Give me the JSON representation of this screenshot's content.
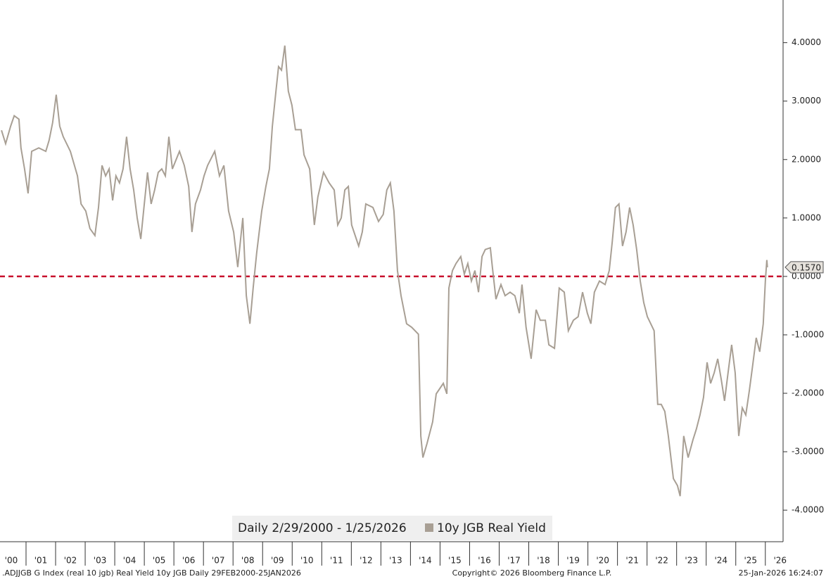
{
  "chart_data": {
    "type": "line",
    "x": [
      2000.17,
      2000.31,
      2000.48,
      2000.6,
      2000.76,
      2000.83,
      2000.95,
      2001.07,
      2001.19,
      2001.43,
      2001.67,
      2001.78,
      2001.9,
      2002.02,
      2002.14,
      2002.26,
      2002.5,
      2002.74,
      2002.86,
      2003.02,
      2003.16,
      2003.33,
      2003.45,
      2003.57,
      2003.69,
      2003.81,
      2003.93,
      2004.04,
      2004.16,
      2004.28,
      2004.4,
      2004.52,
      2004.64,
      2004.76,
      2004.88,
      2005.0,
      2005.11,
      2005.23,
      2005.35,
      2005.47,
      2005.59,
      2005.71,
      2005.83,
      2005.95,
      2006.19,
      2006.35,
      2006.5,
      2006.61,
      2006.73,
      2006.9,
      2007.02,
      2007.14,
      2007.38,
      2007.54,
      2007.69,
      2007.85,
      2008.02,
      2008.16,
      2008.33,
      2008.45,
      2008.57,
      2008.68,
      2008.8,
      2008.97,
      2009.11,
      2009.23,
      2009.33,
      2009.45,
      2009.54,
      2009.64,
      2009.75,
      2009.87,
      2009.99,
      2010.11,
      2010.3,
      2010.4,
      2010.59,
      2010.75,
      2010.87,
      2011.06,
      2011.25,
      2011.42,
      2011.54,
      2011.66,
      2011.78,
      2011.9,
      2012.01,
      2012.25,
      2012.37,
      2012.49,
      2012.73,
      2012.92,
      2013.08,
      2013.2,
      2013.32,
      2013.44,
      2013.56,
      2013.68,
      2013.87,
      2014.04,
      2014.27,
      2014.35,
      2014.42,
      2014.56,
      2014.75,
      2014.87,
      2015.11,
      2015.23,
      2015.3,
      2015.42,
      2015.54,
      2015.7,
      2015.82,
      2015.94,
      2016.06,
      2016.18,
      2016.3,
      2016.42,
      2016.53,
      2016.7,
      2016.77,
      2016.89,
      2017.06,
      2017.2,
      2017.37,
      2017.53,
      2017.68,
      2017.77,
      2017.91,
      2018.08,
      2018.25,
      2018.39,
      2018.56,
      2018.68,
      2018.87,
      2019.03,
      2019.2,
      2019.34,
      2019.51,
      2019.67,
      2019.82,
      2019.98,
      2020.1,
      2020.22,
      2020.39,
      2020.58,
      2020.72,
      2020.82,
      2020.93,
      2021.05,
      2021.17,
      2021.29,
      2021.41,
      2021.53,
      2021.65,
      2021.77,
      2021.89,
      2022.01,
      2022.24,
      2022.36,
      2022.48,
      2022.6,
      2022.72,
      2022.89,
      2023.03,
      2023.12,
      2023.24,
      2023.39,
      2023.55,
      2023.67,
      2023.79,
      2023.91,
      2024.03,
      2024.15,
      2024.27,
      2024.39,
      2024.51,
      2024.62,
      2024.74,
      2024.86,
      2024.98,
      2025.1,
      2025.22,
      2025.34,
      2025.46,
      2025.57,
      2025.69,
      2025.81,
      2025.93,
      2026.0,
      2026.05,
      2026.07
    ],
    "series": [
      {
        "name": "10y JGB Real Yield",
        "color": "#a89f94",
        "values": [
          2.5,
          2.27,
          2.57,
          2.75,
          2.69,
          2.2,
          1.84,
          1.42,
          2.14,
          2.2,
          2.14,
          2.33,
          2.63,
          3.11,
          2.57,
          2.39,
          2.14,
          1.72,
          1.24,
          1.12,
          0.82,
          0.7,
          1.18,
          1.9,
          1.72,
          1.84,
          1.3,
          1.72,
          1.6,
          1.84,
          2.39,
          1.84,
          1.48,
          1.0,
          0.64,
          1.24,
          1.78,
          1.24,
          1.48,
          1.78,
          1.84,
          1.72,
          2.39,
          1.84,
          2.14,
          1.9,
          1.54,
          0.76,
          1.24,
          1.48,
          1.72,
          1.9,
          2.14,
          1.72,
          1.9,
          1.12,
          0.76,
          0.16,
          1.0,
          -0.33,
          -0.81,
          -0.2,
          0.4,
          1.12,
          1.54,
          1.84,
          2.57,
          3.17,
          3.59,
          3.53,
          3.95,
          3.17,
          2.93,
          2.51,
          2.51,
          2.08,
          1.84,
          0.88,
          1.36,
          1.78,
          1.6,
          1.48,
          0.88,
          1.0,
          1.48,
          1.54,
          0.88,
          0.52,
          0.76,
          1.24,
          1.18,
          0.94,
          1.06,
          1.48,
          1.6,
          1.12,
          0.1,
          -0.33,
          -0.81,
          -0.87,
          -0.99,
          -2.73,
          -3.1,
          -2.86,
          -2.49,
          -2.01,
          -1.83,
          -2.01,
          -0.2,
          0.1,
          0.22,
          0.34,
          0.04,
          0.22,
          -0.08,
          0.1,
          -0.27,
          0.34,
          0.46,
          0.49,
          0.16,
          -0.39,
          -0.14,
          -0.33,
          -0.27,
          -0.33,
          -0.63,
          -0.14,
          -0.87,
          -1.41,
          -0.57,
          -0.75,
          -0.75,
          -1.17,
          -1.23,
          -0.2,
          -0.27,
          -0.93,
          -0.75,
          -0.69,
          -0.27,
          -0.63,
          -0.81,
          -0.27,
          -0.08,
          -0.14,
          0.1,
          0.58,
          1.18,
          1.24,
          0.52,
          0.76,
          1.18,
          0.88,
          0.46,
          -0.08,
          -0.45,
          -0.69,
          -0.93,
          -2.19,
          -2.19,
          -2.31,
          -2.73,
          -3.46,
          -3.58,
          -3.76,
          -2.73,
          -3.1,
          -2.8,
          -2.61,
          -2.37,
          -2.07,
          -1.47,
          -1.83,
          -1.65,
          -1.41,
          -1.77,
          -2.13,
          -1.65,
          -1.17,
          -1.65,
          -2.73,
          -2.25,
          -2.37,
          -1.95,
          -1.53,
          -1.05,
          -1.29,
          -0.81,
          -0.08,
          0.28,
          0.157
        ]
      }
    ],
    "last_value": 0.157,
    "last_value_label": "0.1570",
    "hline": {
      "value": 0,
      "color": "#c8102e"
    },
    "xlim": [
      2000.12,
      2026.6
    ],
    "xticks": [
      {
        "value": 2000,
        "label": "'00"
      },
      {
        "value": 2001,
        "label": "'01"
      },
      {
        "value": 2002,
        "label": "'02"
      },
      {
        "value": 2003,
        "label": "'03"
      },
      {
        "value": 2004,
        "label": "'04"
      },
      {
        "value": 2005,
        "label": "'05"
      },
      {
        "value": 2006,
        "label": "'06"
      },
      {
        "value": 2007,
        "label": "'07"
      },
      {
        "value": 2008,
        "label": "'08"
      },
      {
        "value": 2009,
        "label": "'09"
      },
      {
        "value": 2010,
        "label": "'10"
      },
      {
        "value": 2011,
        "label": "'11"
      },
      {
        "value": 2012,
        "label": "'12"
      },
      {
        "value": 2013,
        "label": "'13"
      },
      {
        "value": 2014,
        "label": "'14"
      },
      {
        "value": 2015,
        "label": "'15"
      },
      {
        "value": 2016,
        "label": "'16"
      },
      {
        "value": 2017,
        "label": "'17"
      },
      {
        "value": 2018,
        "label": "'18"
      },
      {
        "value": 2019,
        "label": "'19"
      },
      {
        "value": 2020,
        "label": "'20"
      },
      {
        "value": 2021,
        "label": "'21"
      },
      {
        "value": 2022,
        "label": "'22"
      },
      {
        "value": 2023,
        "label": "'23"
      },
      {
        "value": 2024,
        "label": "'24"
      },
      {
        "value": 2025,
        "label": "'25"
      },
      {
        "value": 2026,
        "label": "'26"
      }
    ],
    "ylim": [
      -4.54,
      4.73
    ],
    "yticks": [
      {
        "value": 4,
        "label": "4.0000"
      },
      {
        "value": 3,
        "label": "3.0000"
      },
      {
        "value": 2,
        "label": "2.0000"
      },
      {
        "value": 1,
        "label": "1.0000"
      },
      {
        "value": 0,
        "label": "0.0000"
      },
      {
        "value": -1,
        "label": "-1.0000"
      },
      {
        "value": -2,
        "label": "-2.0000"
      },
      {
        "value": -3,
        "label": "-3.0000"
      },
      {
        "value": -4,
        "label": "-4.0000"
      }
    ],
    "date_range": "Daily 2/29/2000 - 1/25/2026",
    "footer_left": ".ADJJGB G Index (real 10 jgb) Real Yield 10y JGB Daily 29FEB2000-25JAN2026",
    "footer_center": "Copyright© 2026 Bloomberg Finance L.P.",
    "footer_right": "25-Jan-2026 16:24:07"
  }
}
